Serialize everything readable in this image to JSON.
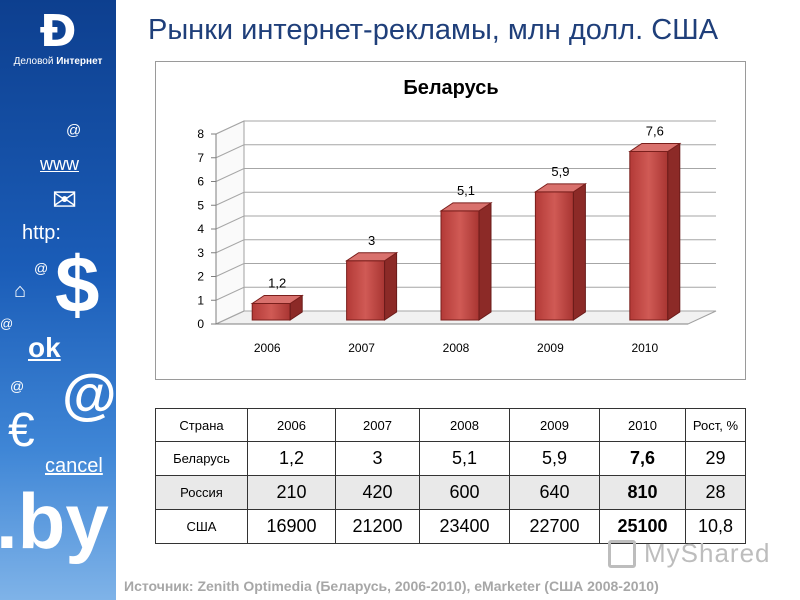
{
  "sidebar": {
    "logo_mark": "Ð",
    "logo_text_plain": "Деловой",
    "logo_text_bold": "Интернет",
    "decorations": [
      "@",
      "www",
      "✉",
      "http:",
      "@",
      "$",
      "⌂",
      "@",
      "ok",
      "@",
      "@",
      "€",
      "cancel",
      ".by"
    ]
  },
  "slide": {
    "title": "Рынки интернет-рекламы, млн долл. США",
    "source": "Источник: Zenith Optimedia (Беларусь, 2006-2010), eMarketer (США 2008-2010)",
    "watermark": "MyShared"
  },
  "chart_data": {
    "type": "bar",
    "title": "Беларусь",
    "categories": [
      "2006",
      "2007",
      "2008",
      "2009",
      "2010"
    ],
    "values": [
      1.2,
      3,
      5.1,
      5.9,
      7.6
    ],
    "value_labels": [
      "1,2",
      "3",
      "5,1",
      "5,9",
      "7,6"
    ],
    "ylim": [
      0,
      8
    ],
    "yticks": [
      "0",
      "1",
      "2",
      "3",
      "4",
      "5",
      "6",
      "7",
      "8"
    ],
    "xlabel": "",
    "ylabel": "",
    "grid": true,
    "style": "3d",
    "bar_color": "#c0504d"
  },
  "table": {
    "headers": [
      "Страна",
      "2006",
      "2007",
      "2008",
      "2009",
      "2010",
      "Рост, %"
    ],
    "rows": [
      {
        "country": "Беларусь",
        "values": [
          "1,2",
          "3",
          "5,1",
          "5,9",
          "7,6"
        ],
        "growth": "29"
      },
      {
        "country": "Россия",
        "values": [
          "210",
          "420",
          "600",
          "640",
          "810"
        ],
        "growth": "28"
      },
      {
        "country": "США",
        "values": [
          "16900",
          "21200",
          "23400",
          "22700",
          "25100"
        ],
        "growth": "10,8"
      }
    ]
  }
}
